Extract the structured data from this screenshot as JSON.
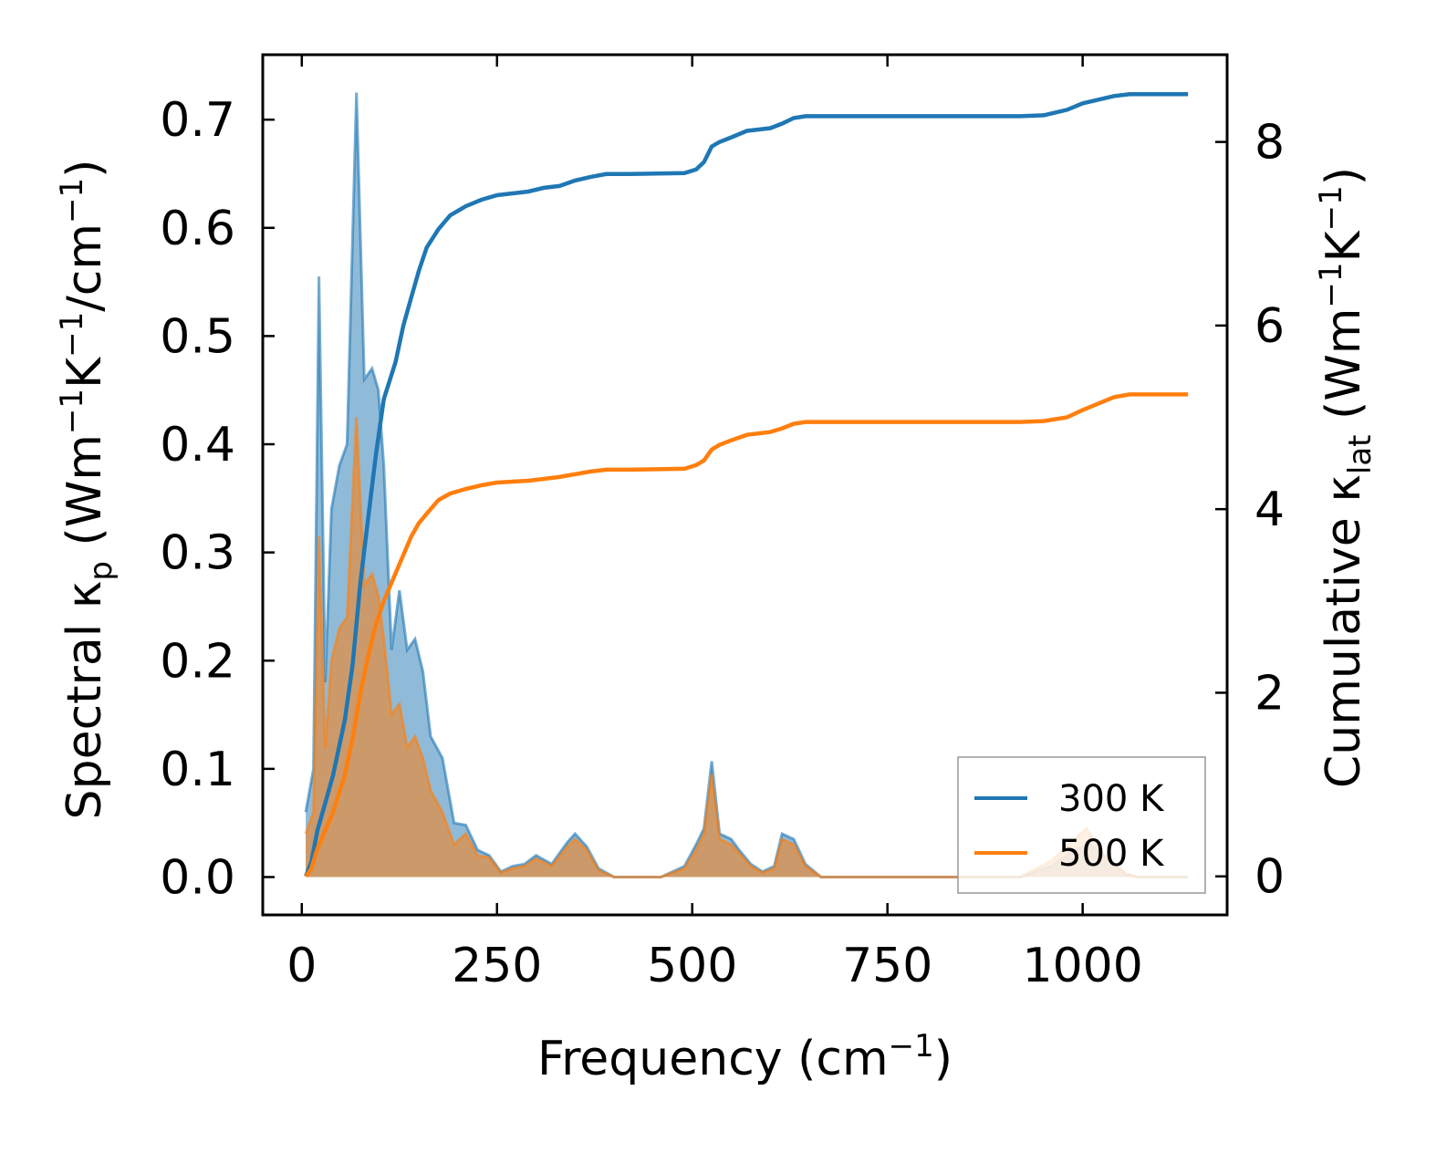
{
  "chart_data": {
    "type": "area",
    "x_axis": {
      "title": "Frequency (cm",
      "title_sup": "−1",
      "title_end": ")",
      "range": [
        -50,
        1185
      ],
      "ticks": [
        0,
        250,
        500,
        750,
        1000
      ],
      "tick_labels": [
        "0",
        "250",
        "500",
        "750",
        "1000"
      ]
    },
    "y_left": {
      "title_parts": [
        "Spectral κ",
        "p",
        " (Wm",
        "−1",
        "K",
        "−1",
        "/cm",
        "−1",
        ")"
      ],
      "range": [
        -0.035,
        0.76
      ],
      "ticks": [
        0.0,
        0.1,
        0.2,
        0.3,
        0.4,
        0.5,
        0.6,
        0.7
      ],
      "tick_labels": [
        "0.0",
        "0.1",
        "0.2",
        "0.3",
        "0.4",
        "0.5",
        "0.6",
        "0.7"
      ]
    },
    "y_right": {
      "title_parts": [
        "Cumulative κ",
        "lat",
        " (Wm",
        "−1",
        "K",
        "−1",
        ")"
      ],
      "range": [
        -0.42,
        8.95
      ],
      "ticks": [
        0,
        2,
        4,
        6,
        8
      ],
      "tick_labels": [
        "0",
        "2",
        "4",
        "6",
        "8"
      ]
    },
    "legend": {
      "position": "lower-right",
      "entries": [
        {
          "label": "300 K",
          "color": "#1f77b4"
        },
        {
          "label": "500 K",
          "color": "#ff7f0e"
        }
      ]
    },
    "series": [
      {
        "name": "300 K",
        "color": "#1f77b4",
        "spectral": [
          [
            5,
            0.06
          ],
          [
            15,
            0.1
          ],
          [
            22,
            0.555
          ],
          [
            30,
            0.18
          ],
          [
            38,
            0.34
          ],
          [
            48,
            0.38
          ],
          [
            58,
            0.4
          ],
          [
            70,
            0.725
          ],
          [
            80,
            0.46
          ],
          [
            90,
            0.47
          ],
          [
            98,
            0.45
          ],
          [
            105,
            0.38
          ],
          [
            115,
            0.21
          ],
          [
            125,
            0.265
          ],
          [
            135,
            0.21
          ],
          [
            145,
            0.22
          ],
          [
            155,
            0.19
          ],
          [
            165,
            0.13
          ],
          [
            180,
            0.11
          ],
          [
            195,
            0.05
          ],
          [
            210,
            0.048
          ],
          [
            225,
            0.025
          ],
          [
            240,
            0.02
          ],
          [
            255,
            0.005
          ],
          [
            270,
            0.01
          ],
          [
            285,
            0.012
          ],
          [
            300,
            0.02
          ],
          [
            320,
            0.012
          ],
          [
            340,
            0.032
          ],
          [
            350,
            0.04
          ],
          [
            365,
            0.028
          ],
          [
            380,
            0.008
          ],
          [
            400,
            0.0
          ],
          [
            460,
            0.0
          ],
          [
            490,
            0.01
          ],
          [
            505,
            0.03
          ],
          [
            515,
            0.045
          ],
          [
            525,
            0.107
          ],
          [
            535,
            0.04
          ],
          [
            550,
            0.035
          ],
          [
            560,
            0.025
          ],
          [
            575,
            0.012
          ],
          [
            590,
            0.005
          ],
          [
            605,
            0.01
          ],
          [
            615,
            0.04
          ],
          [
            630,
            0.035
          ],
          [
            645,
            0.012
          ],
          [
            665,
            0.0
          ],
          [
            920,
            0.0
          ],
          [
            960,
            0.01
          ],
          [
            990,
            0.025
          ],
          [
            1010,
            0.03
          ],
          [
            1030,
            0.018
          ],
          [
            1055,
            0.003
          ],
          [
            1070,
            0.0
          ],
          [
            1135,
            0.0
          ]
        ],
        "cumulative": [
          [
            5,
            0.0
          ],
          [
            12,
            0.15
          ],
          [
            20,
            0.5
          ],
          [
            30,
            0.8
          ],
          [
            40,
            1.1
          ],
          [
            55,
            1.7
          ],
          [
            65,
            2.3
          ],
          [
            75,
            3.2
          ],
          [
            85,
            3.9
          ],
          [
            95,
            4.6
          ],
          [
            105,
            5.2
          ],
          [
            120,
            5.6
          ],
          [
            130,
            6.0
          ],
          [
            140,
            6.3
          ],
          [
            150,
            6.6
          ],
          [
            160,
            6.85
          ],
          [
            175,
            7.05
          ],
          [
            190,
            7.2
          ],
          [
            210,
            7.3
          ],
          [
            230,
            7.37
          ],
          [
            250,
            7.42
          ],
          [
            270,
            7.44
          ],
          [
            290,
            7.46
          ],
          [
            310,
            7.5
          ],
          [
            330,
            7.52
          ],
          [
            350,
            7.58
          ],
          [
            370,
            7.62
          ],
          [
            390,
            7.65
          ],
          [
            420,
            7.65
          ],
          [
            490,
            7.66
          ],
          [
            505,
            7.7
          ],
          [
            515,
            7.78
          ],
          [
            525,
            7.95
          ],
          [
            535,
            8.0
          ],
          [
            550,
            8.05
          ],
          [
            570,
            8.12
          ],
          [
            590,
            8.14
          ],
          [
            600,
            8.15
          ],
          [
            615,
            8.2
          ],
          [
            630,
            8.26
          ],
          [
            645,
            8.28
          ],
          [
            700,
            8.28
          ],
          [
            920,
            8.28
          ],
          [
            950,
            8.29
          ],
          [
            980,
            8.35
          ],
          [
            1000,
            8.42
          ],
          [
            1020,
            8.46
          ],
          [
            1040,
            8.5
          ],
          [
            1060,
            8.52
          ],
          [
            1135,
            8.52
          ]
        ]
      },
      {
        "name": "500 K",
        "color": "#ff7f0e",
        "spectral": [
          [
            5,
            0.04
          ],
          [
            15,
            0.06
          ],
          [
            22,
            0.315
          ],
          [
            30,
            0.12
          ],
          [
            38,
            0.2
          ],
          [
            48,
            0.23
          ],
          [
            58,
            0.24
          ],
          [
            70,
            0.425
          ],
          [
            80,
            0.27
          ],
          [
            90,
            0.28
          ],
          [
            98,
            0.26
          ],
          [
            105,
            0.22
          ],
          [
            115,
            0.15
          ],
          [
            125,
            0.16
          ],
          [
            135,
            0.12
          ],
          [
            145,
            0.13
          ],
          [
            155,
            0.11
          ],
          [
            165,
            0.08
          ],
          [
            180,
            0.06
          ],
          [
            195,
            0.03
          ],
          [
            210,
            0.04
          ],
          [
            225,
            0.02
          ],
          [
            240,
            0.018
          ],
          [
            255,
            0.004
          ],
          [
            270,
            0.008
          ],
          [
            285,
            0.01
          ],
          [
            300,
            0.017
          ],
          [
            320,
            0.01
          ],
          [
            340,
            0.028
          ],
          [
            350,
            0.035
          ],
          [
            365,
            0.025
          ],
          [
            380,
            0.006
          ],
          [
            400,
            0.0
          ],
          [
            460,
            0.0
          ],
          [
            490,
            0.008
          ],
          [
            505,
            0.025
          ],
          [
            515,
            0.04
          ],
          [
            525,
            0.095
          ],
          [
            535,
            0.035
          ],
          [
            550,
            0.03
          ],
          [
            560,
            0.022
          ],
          [
            575,
            0.01
          ],
          [
            590,
            0.004
          ],
          [
            605,
            0.008
          ],
          [
            615,
            0.035
          ],
          [
            630,
            0.03
          ],
          [
            645,
            0.01
          ],
          [
            665,
            0.0
          ],
          [
            920,
            0.0
          ],
          [
            960,
            0.015
          ],
          [
            990,
            0.035
          ],
          [
            1005,
            0.045
          ],
          [
            1025,
            0.022
          ],
          [
            1055,
            0.003
          ],
          [
            1070,
            0.0
          ],
          [
            1135,
            0.0
          ]
        ],
        "cumulative": [
          [
            5,
            0.0
          ],
          [
            12,
            0.08
          ],
          [
            20,
            0.3
          ],
          [
            30,
            0.5
          ],
          [
            40,
            0.7
          ],
          [
            55,
            1.1
          ],
          [
            65,
            1.5
          ],
          [
            75,
            2.0
          ],
          [
            85,
            2.4
          ],
          [
            95,
            2.75
          ],
          [
            105,
            3.0
          ],
          [
            120,
            3.3
          ],
          [
            130,
            3.5
          ],
          [
            140,
            3.7
          ],
          [
            150,
            3.85
          ],
          [
            160,
            3.95
          ],
          [
            175,
            4.1
          ],
          [
            190,
            4.17
          ],
          [
            210,
            4.22
          ],
          [
            230,
            4.26
          ],
          [
            250,
            4.29
          ],
          [
            270,
            4.3
          ],
          [
            290,
            4.31
          ],
          [
            310,
            4.33
          ],
          [
            330,
            4.35
          ],
          [
            350,
            4.38
          ],
          [
            370,
            4.41
          ],
          [
            390,
            4.43
          ],
          [
            420,
            4.43
          ],
          [
            490,
            4.44
          ],
          [
            505,
            4.48
          ],
          [
            515,
            4.53
          ],
          [
            525,
            4.65
          ],
          [
            535,
            4.7
          ],
          [
            550,
            4.75
          ],
          [
            570,
            4.81
          ],
          [
            590,
            4.83
          ],
          [
            600,
            4.84
          ],
          [
            615,
            4.88
          ],
          [
            630,
            4.93
          ],
          [
            645,
            4.95
          ],
          [
            700,
            4.95
          ],
          [
            920,
            4.95
          ],
          [
            950,
            4.96
          ],
          [
            980,
            5.0
          ],
          [
            1000,
            5.08
          ],
          [
            1020,
            5.15
          ],
          [
            1040,
            5.22
          ],
          [
            1060,
            5.25
          ],
          [
            1135,
            5.25
          ]
        ]
      }
    ]
  }
}
